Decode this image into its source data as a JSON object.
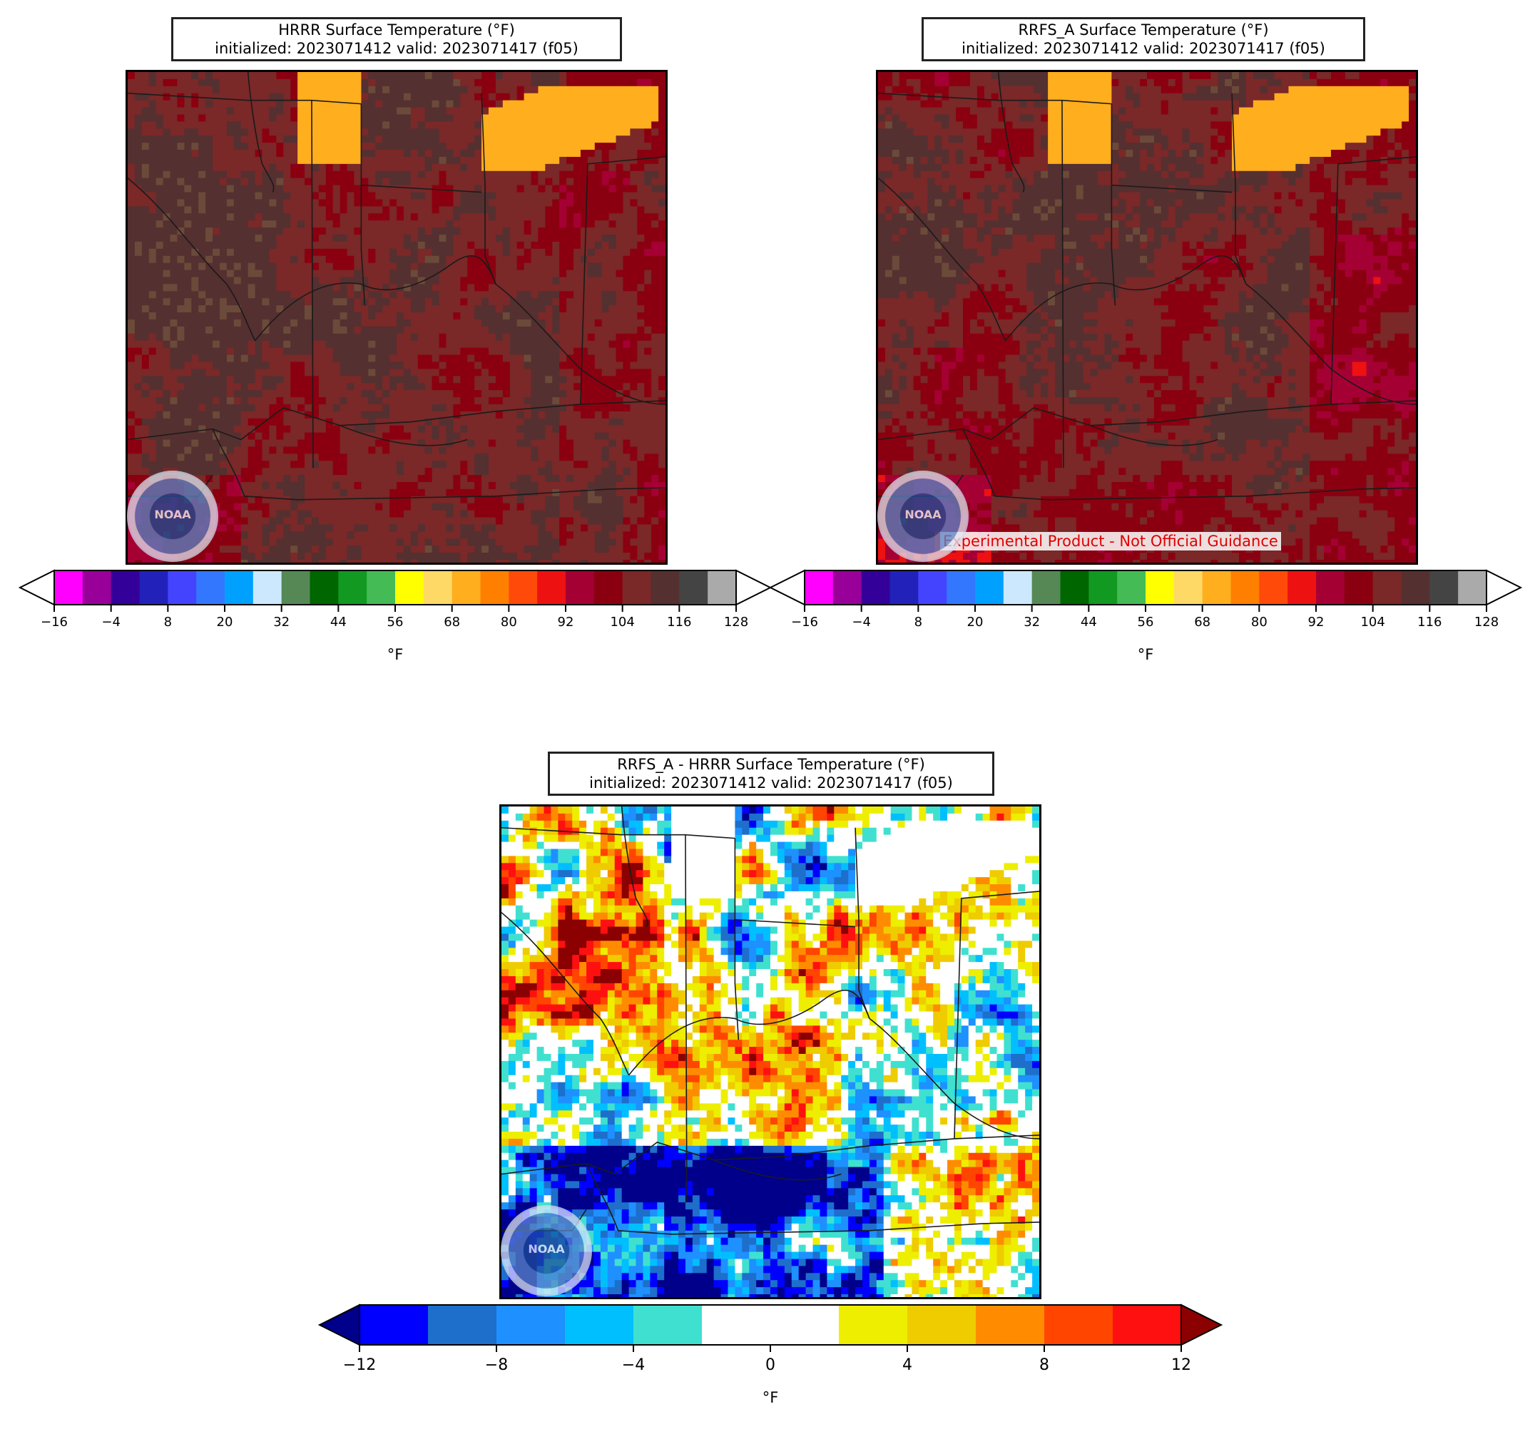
{
  "panels": [
    {
      "title_line1": "HRRR Surface Temperature (°F)",
      "title_line2": "initialized: 2023071412 valid: 2023071417 (f05)",
      "cbar_unit": "°F",
      "tick_labels": [
        "−16",
        "−4",
        "8",
        "20",
        "32",
        "44",
        "56",
        "68",
        "80",
        "92",
        "104",
        "116",
        "128"
      ],
      "field": "hrrr"
    },
    {
      "title_line1": "RRFS_A Surface Temperature (°F)",
      "title_line2": "initialized: 2023071412 valid: 2023071417 (f05)",
      "cbar_unit": "°F",
      "tick_labels": [
        "−16",
        "−4",
        "8",
        "20",
        "32",
        "44",
        "56",
        "68",
        "80",
        "92",
        "104",
        "116",
        "128"
      ],
      "banner": "Experimental Product - Not Official Guidance",
      "field": "rrfs"
    },
    {
      "title_line1": "RRFS_A - HRRR Surface Temperature (°F)",
      "title_line2": "initialized: 2023071412 valid: 2023071417 (f05)",
      "cbar_unit": "°F",
      "tick_labels": [
        "−12",
        "−8",
        "−4",
        "0",
        "4",
        "8",
        "12"
      ],
      "field": "diff"
    }
  ],
  "logo_text": "NOAA",
  "temp_colors": [
    "#ff00ff",
    "#990099",
    "#330099",
    "#2222bb",
    "#4444ff",
    "#3377ff",
    "#00a0ff",
    "#cce8ff",
    "#558855",
    "#006600",
    "#119922",
    "#44bb55",
    "#ffff00",
    "#ffd966",
    "#ffae1e",
    "#ff8000",
    "#ff4a0a",
    "#ee1111",
    "#a50034",
    "#8b0010",
    "#7a2828",
    "#553030",
    "#444444",
    "#aaaaaa"
  ],
  "temp_over_color": "#ffffff",
  "temp_under_color": "#ffffff",
  "diff_colors": [
    "#0000ff",
    "#1e6ecc",
    "#1e90ff",
    "#00bfff",
    "#40e0d0",
    "#ffffff",
    "#ffffff",
    "#eeee00",
    "#eecc00",
    "#ff8c00",
    "#ff4500",
    "#ff1010"
  ],
  "diff_under_color": "#00008b",
  "diff_over_color": "#8b0000"
}
